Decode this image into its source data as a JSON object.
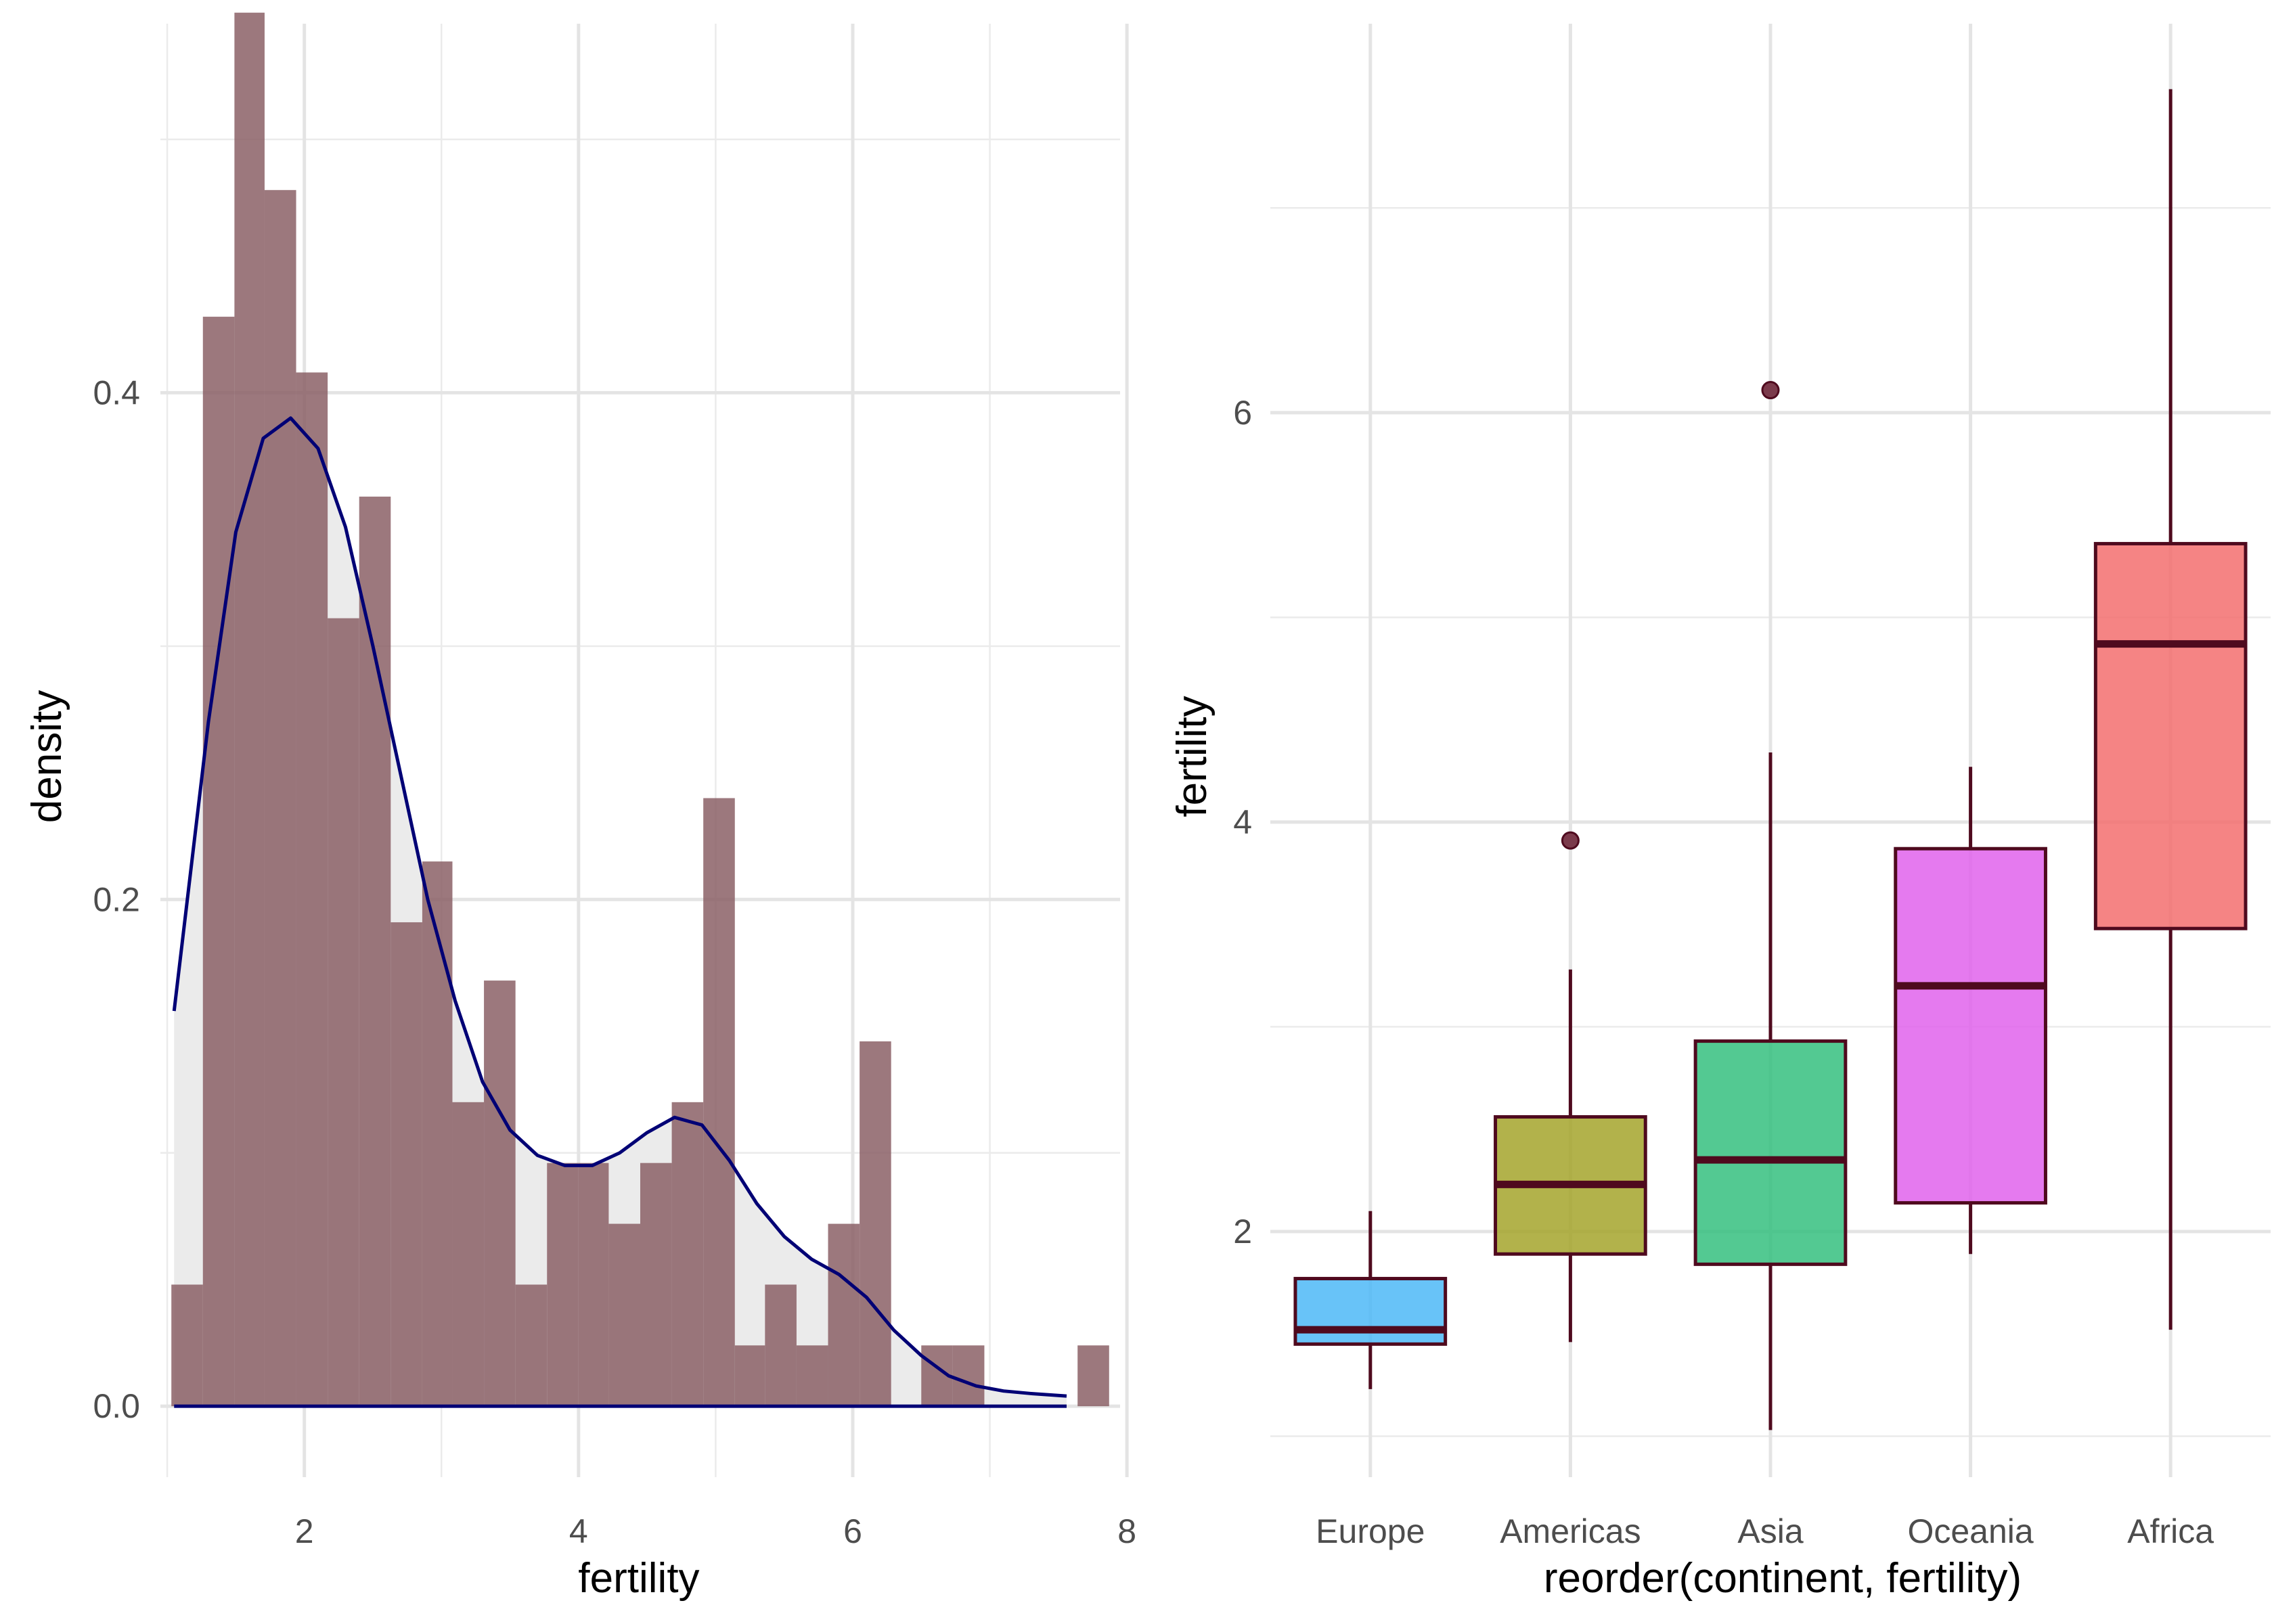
{
  "chart_data": [
    {
      "type": "histogram",
      "xlabel": "fertility",
      "ylabel": "density",
      "xlim": [
        0.95,
        7.95
      ],
      "ylim": [
        -0.028,
        0.555
      ],
      "x_ticks": [
        2,
        4,
        6,
        8
      ],
      "y_ticks": [
        0.0,
        0.2,
        0.4
      ],
      "grid": true,
      "bin_width": 0.228,
      "bins": [
        {
          "x0": 1.03,
          "x1": 1.26,
          "density": 0.048
        },
        {
          "x0": 1.26,
          "x1": 1.49,
          "density": 0.43
        },
        {
          "x0": 1.49,
          "x1": 1.71,
          "density": 0.55
        },
        {
          "x0": 1.71,
          "x1": 1.94,
          "density": 0.48
        },
        {
          "x0": 1.94,
          "x1": 2.17,
          "density": 0.408
        },
        {
          "x0": 2.17,
          "x1": 2.4,
          "density": 0.311
        },
        {
          "x0": 2.4,
          "x1": 2.63,
          "density": 0.359
        },
        {
          "x0": 2.63,
          "x1": 2.86,
          "density": 0.191
        },
        {
          "x0": 2.86,
          "x1": 3.08,
          "density": 0.215
        },
        {
          "x0": 3.08,
          "x1": 3.31,
          "density": 0.12
        },
        {
          "x0": 3.31,
          "x1": 3.54,
          "density": 0.168
        },
        {
          "x0": 3.54,
          "x1": 3.77,
          "density": 0.048
        },
        {
          "x0": 3.77,
          "x1": 4.0,
          "density": 0.096
        },
        {
          "x0": 4.0,
          "x1": 4.22,
          "density": 0.096
        },
        {
          "x0": 4.22,
          "x1": 4.45,
          "density": 0.072
        },
        {
          "x0": 4.45,
          "x1": 4.68,
          "density": 0.096
        },
        {
          "x0": 4.68,
          "x1": 4.91,
          "density": 0.12
        },
        {
          "x0": 4.91,
          "x1": 5.14,
          "density": 0.24
        },
        {
          "x0": 5.14,
          "x1": 5.36,
          "density": 0.024
        },
        {
          "x0": 5.36,
          "x1": 5.59,
          "density": 0.048
        },
        {
          "x0": 5.59,
          "x1": 5.82,
          "density": 0.024
        },
        {
          "x0": 5.82,
          "x1": 6.05,
          "density": 0.072
        },
        {
          "x0": 6.05,
          "x1": 6.28,
          "density": 0.144
        },
        {
          "x0": 6.28,
          "x1": 6.5,
          "density": 0.0
        },
        {
          "x0": 6.5,
          "x1": 6.73,
          "density": 0.024
        },
        {
          "x0": 6.73,
          "x1": 6.96,
          "density": 0.024
        },
        {
          "x0": 6.96,
          "x1": 7.19,
          "density": 0.0
        },
        {
          "x0": 7.19,
          "x1": 7.42,
          "density": 0.0
        },
        {
          "x0": 7.42,
          "x1": 7.64,
          "density": 0.0
        },
        {
          "x0": 7.64,
          "x1": 7.87,
          "density": 0.024
        }
      ],
      "density_curve": {
        "x": [
          1.05,
          1.3,
          1.5,
          1.7,
          1.9,
          2.1,
          2.3,
          2.5,
          2.7,
          2.9,
          3.1,
          3.3,
          3.5,
          3.7,
          3.9,
          4.1,
          4.3,
          4.5,
          4.7,
          4.9,
          5.1,
          5.3,
          5.5,
          5.7,
          5.9,
          6.1,
          6.3,
          6.5,
          6.7,
          6.9,
          7.1,
          7.3,
          7.56
        ],
        "y": [
          0.156,
          0.27,
          0.345,
          0.382,
          0.39,
          0.378,
          0.347,
          0.3,
          0.25,
          0.2,
          0.16,
          0.128,
          0.109,
          0.099,
          0.095,
          0.095,
          0.1,
          0.108,
          0.114,
          0.111,
          0.097,
          0.08,
          0.067,
          0.058,
          0.052,
          0.043,
          0.03,
          0.02,
          0.012,
          0.008,
          0.006,
          0.005,
          0.004
        ]
      },
      "colors": {
        "bars": "#8b6066",
        "curve": "#000075",
        "curve_fill": "#ebebeb"
      }
    },
    {
      "type": "boxplot",
      "xlabel": "reorder(continent, fertility)",
      "ylabel": "fertility",
      "ylim": [
        0.8,
        7.9
      ],
      "y_ticks": [
        2,
        4,
        6
      ],
      "grid": true,
      "categories": [
        "Europe",
        "Americas",
        "Asia",
        "Oceania",
        "Africa"
      ],
      "boxes": [
        {
          "category": "Europe",
          "lower": 1.23,
          "q1": 1.45,
          "median": 1.52,
          "q3": 1.77,
          "upper": 2.1,
          "outliers": [],
          "color": "#4db8f7"
        },
        {
          "category": "Americas",
          "lower": 1.46,
          "q1": 1.89,
          "median": 2.23,
          "q3": 2.56,
          "upper": 3.28,
          "outliers": [
            3.91
          ],
          "color": "#a5a52c"
        },
        {
          "category": "Asia",
          "lower": 1.03,
          "q1": 1.84,
          "median": 2.35,
          "q3": 2.93,
          "upper": 4.34,
          "outliers": [
            6.11
          ],
          "color": "#35c07f"
        },
        {
          "category": "Oceania",
          "lower": 1.89,
          "q1": 2.14,
          "median": 3.2,
          "q3": 3.87,
          "upper": 4.27,
          "outliers": [],
          "color": "#e163ec"
        },
        {
          "category": "Africa",
          "lower": 1.52,
          "q1": 3.48,
          "median": 4.87,
          "q3": 5.36,
          "upper": 7.58,
          "outliers": [],
          "color": "#f36f6f"
        }
      ],
      "colors": {
        "outline": "#4f0a1e",
        "median": "#4f0a1e",
        "outlier": "#7b3a4b"
      }
    }
  ]
}
